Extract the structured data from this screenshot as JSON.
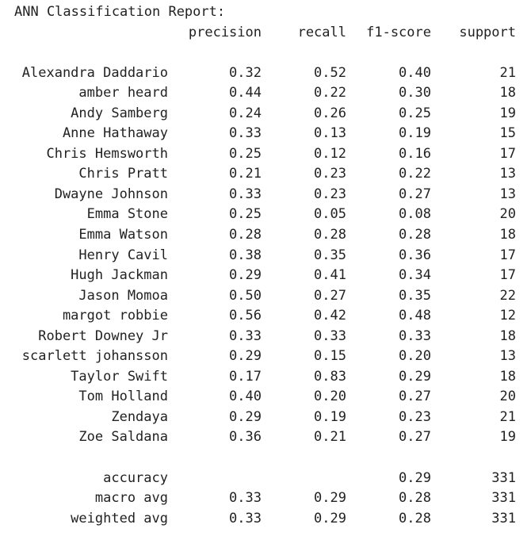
{
  "report": {
    "title": "ANN Classification Report:",
    "headers": {
      "precision": "precision",
      "recall": "recall",
      "f1": "f1-score",
      "support": "support"
    },
    "rows": [
      {
        "name": "Alexandra Daddario",
        "precision": "0.32",
        "recall": "0.52",
        "f1": "0.40",
        "support": "21"
      },
      {
        "name": "amber heard",
        "precision": "0.44",
        "recall": "0.22",
        "f1": "0.30",
        "support": "18"
      },
      {
        "name": "Andy Samberg",
        "precision": "0.24",
        "recall": "0.26",
        "f1": "0.25",
        "support": "19"
      },
      {
        "name": "Anne Hathaway",
        "precision": "0.33",
        "recall": "0.13",
        "f1": "0.19",
        "support": "15"
      },
      {
        "name": "Chris Hemsworth",
        "precision": "0.25",
        "recall": "0.12",
        "f1": "0.16",
        "support": "17"
      },
      {
        "name": "Chris Pratt",
        "precision": "0.21",
        "recall": "0.23",
        "f1": "0.22",
        "support": "13"
      },
      {
        "name": "Dwayne Johnson",
        "precision": "0.33",
        "recall": "0.23",
        "f1": "0.27",
        "support": "13"
      },
      {
        "name": "Emma Stone",
        "precision": "0.25",
        "recall": "0.05",
        "f1": "0.08",
        "support": "20"
      },
      {
        "name": "Emma Watson",
        "precision": "0.28",
        "recall": "0.28",
        "f1": "0.28",
        "support": "18"
      },
      {
        "name": "Henry Cavil",
        "precision": "0.38",
        "recall": "0.35",
        "f1": "0.36",
        "support": "17"
      },
      {
        "name": "Hugh Jackman",
        "precision": "0.29",
        "recall": "0.41",
        "f1": "0.34",
        "support": "17"
      },
      {
        "name": "Jason Momoa",
        "precision": "0.50",
        "recall": "0.27",
        "f1": "0.35",
        "support": "22"
      },
      {
        "name": "margot robbie",
        "precision": "0.56",
        "recall": "0.42",
        "f1": "0.48",
        "support": "12"
      },
      {
        "name": "Robert Downey Jr",
        "precision": "0.33",
        "recall": "0.33",
        "f1": "0.33",
        "support": "18"
      },
      {
        "name": "scarlett johansson",
        "precision": "0.29",
        "recall": "0.15",
        "f1": "0.20",
        "support": "13"
      },
      {
        "name": "Taylor Swift",
        "precision": "0.17",
        "recall": "0.83",
        "f1": "0.29",
        "support": "18"
      },
      {
        "name": "Tom Holland",
        "precision": "0.40",
        "recall": "0.20",
        "f1": "0.27",
        "support": "20"
      },
      {
        "name": "Zendaya",
        "precision": "0.29",
        "recall": "0.19",
        "f1": "0.23",
        "support": "21"
      },
      {
        "name": "Zoe Saldana",
        "precision": "0.36",
        "recall": "0.21",
        "f1": "0.27",
        "support": "19"
      }
    ],
    "summary": [
      {
        "name": "accuracy",
        "precision": "",
        "recall": "",
        "f1": "0.29",
        "support": "331"
      },
      {
        "name": "macro avg",
        "precision": "0.33",
        "recall": "0.29",
        "f1": "0.28",
        "support": "331"
      },
      {
        "name": "weighted avg",
        "precision": "0.33",
        "recall": "0.29",
        "f1": "0.28",
        "support": "331"
      }
    ]
  }
}
